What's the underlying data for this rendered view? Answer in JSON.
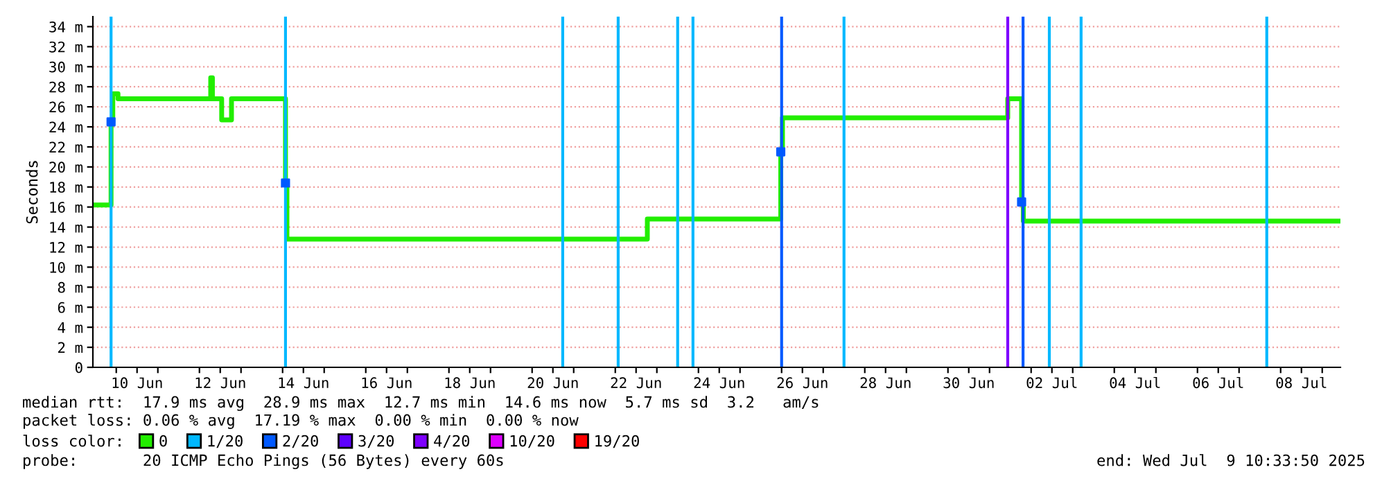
{
  "chart_data": {
    "type": "step",
    "ylabel": "Seconds",
    "x": [
      "2025-06-09T10:30",
      "2025-06-09T21:00",
      "2025-06-09T22:00",
      "2025-06-10T01:00",
      "2025-06-12T06:30",
      "2025-06-12T07:30",
      "2025-06-12T12:50",
      "2025-06-12T18:30",
      "2025-06-14T01:40",
      "2025-06-14T02:30",
      "2025-06-22T18:30",
      "2025-06-25T23:30",
      "2025-06-26T00:30",
      "2025-07-01T10:30",
      "2025-07-01T18:30",
      "2025-07-01T19:30",
      "2025-07-09T10:30"
    ],
    "series": [
      {
        "name": "0",
        "color": "#22ee00",
        "values": [
          16.2,
          24.5,
          27.3,
          26.8,
          28.9,
          26.8,
          24.7,
          26.8,
          18.4,
          12.8,
          14.8,
          21.5,
          24.9,
          26.8,
          16.5,
          14.6,
          14.6
        ]
      },
      {
        "name": "1/20",
        "color": "#00b8ff",
        "values": [
          null,
          null,
          null,
          null,
          null,
          null,
          null,
          null,
          null,
          null,
          null,
          null,
          null,
          null,
          null,
          null,
          null
        ]
      },
      {
        "name": "2/20",
        "type": "scatter",
        "color": "#0059ff",
        "values": [
          null,
          24.5,
          null,
          null,
          null,
          null,
          null,
          null,
          18.4,
          null,
          null,
          21.5,
          null,
          null,
          16.5,
          null,
          null
        ]
      },
      {
        "name": "3/20",
        "color": "#5e00ff",
        "values": [
          null,
          null,
          null,
          null,
          null,
          null,
          null,
          null,
          null,
          null,
          null,
          null,
          null,
          null,
          null,
          null,
          null
        ]
      },
      {
        "name": "4/20",
        "color": "#7e00ff",
        "values": [
          null,
          null,
          null,
          null,
          null,
          null,
          null,
          null,
          null,
          null,
          null,
          null,
          null,
          null,
          null,
          null,
          null
        ]
      },
      {
        "name": "10/20",
        "color": "#dd00ff",
        "values": [
          null,
          null,
          null,
          null,
          null,
          null,
          null,
          null,
          null,
          null,
          null,
          null,
          null,
          null,
          null,
          null,
          null
        ]
      },
      {
        "name": "19/20",
        "color": "#ff0000",
        "values": [
          null,
          null,
          null,
          null,
          null,
          null,
          null,
          null,
          null,
          null,
          null,
          null,
          null,
          null,
          null,
          null,
          null
        ]
      }
    ],
    "legend_title": "loss color:",
    "legend": "bottom left",
    "xlim": [
      "2025-06-09T10:30",
      "2025-07-09T10:30"
    ],
    "xticks": [
      {
        "value": "2025-06-10T00:00",
        "label": null
      },
      {
        "value": "2025-06-11T00:00",
        "label": null
      },
      {
        "value": "2025-06-12T00:00",
        "label": null
      },
      {
        "value": "2025-06-13T00:00",
        "label": null
      },
      {
        "value": "2025-06-14T00:00",
        "label": null
      },
      {
        "value": "2025-06-15T00:00",
        "label": null
      },
      {
        "value": "2025-06-16T00:00",
        "label": null
      },
      {
        "value": "2025-06-17T00:00",
        "label": null
      },
      {
        "value": "2025-06-18T00:00",
        "label": null
      },
      {
        "value": "2025-06-19T00:00",
        "label": null
      },
      {
        "value": "2025-06-20T00:00",
        "label": null
      },
      {
        "value": "2025-06-21T00:00",
        "label": null
      },
      {
        "value": "2025-06-22T00:00",
        "label": null
      },
      {
        "value": "2025-06-23T00:00",
        "label": null
      },
      {
        "value": "2025-06-24T00:00",
        "label": null
      },
      {
        "value": "2025-06-25T00:00",
        "label": null
      },
      {
        "value": "2025-06-26T00:00",
        "label": null
      },
      {
        "value": "2025-06-27T00:00",
        "label": null
      },
      {
        "value": "2025-06-28T00:00",
        "label": null
      },
      {
        "value": "2025-06-29T00:00",
        "label": null
      },
      {
        "value": "2025-06-30T00:00",
        "label": null
      },
      {
        "value": "2025-07-01T00:00",
        "label": null
      },
      {
        "value": "2025-07-02T00:00",
        "label": null
      },
      {
        "value": "2025-07-03T00:00",
        "label": null
      },
      {
        "value": "2025-07-04T00:00",
        "label": null
      },
      {
        "value": "2025-07-05T00:00",
        "label": null
      },
      {
        "value": "2025-07-06T00:00",
        "label": null
      },
      {
        "value": "2025-07-07T00:00",
        "label": null
      },
      {
        "value": "2025-07-08T00:00",
        "label": null
      },
      {
        "value": "2025-07-09T00:00",
        "label": null
      },
      {
        "value": "2025-06-10T12:00",
        "label": "10 Jun"
      },
      {
        "value": "2025-06-12T12:00",
        "label": "12 Jun"
      },
      {
        "value": "2025-06-14T12:00",
        "label": "14 Jun"
      },
      {
        "value": "2025-06-16T12:00",
        "label": "16 Jun"
      },
      {
        "value": "2025-06-18T12:00",
        "label": "18 Jun"
      },
      {
        "value": "2025-06-20T12:00",
        "label": "20 Jun"
      },
      {
        "value": "2025-06-22T12:00",
        "label": "22 Jun"
      },
      {
        "value": "2025-06-24T12:00",
        "label": "24 Jun"
      },
      {
        "value": "2025-06-26T12:00",
        "label": "26 Jun"
      },
      {
        "value": "2025-06-28T12:00",
        "label": "28 Jun"
      },
      {
        "value": "2025-06-30T12:00",
        "label": "30 Jun"
      },
      {
        "value": "2025-07-02T12:00",
        "label": "02 Jul"
      },
      {
        "value": "2025-07-04T12:00",
        "label": "04 Jul"
      },
      {
        "value": "2025-07-06T12:00",
        "label": "06 Jul"
      },
      {
        "value": "2025-07-08T12:00",
        "label": "08 Jul"
      }
    ],
    "ylim": [
      0,
      35
    ],
    "yticks": [
      {
        "value": 0,
        "label": "0"
      },
      {
        "value": 2,
        "label": "2 m"
      },
      {
        "value": 4,
        "label": "4 m"
      },
      {
        "value": 6,
        "label": "6 m"
      },
      {
        "value": 8,
        "label": "8 m"
      },
      {
        "value": 10,
        "label": "10 m"
      },
      {
        "value": 12,
        "label": "12 m"
      },
      {
        "value": 14,
        "label": "14 m"
      },
      {
        "value": 16,
        "label": "16 m"
      },
      {
        "value": 18,
        "label": "18 m"
      },
      {
        "value": 20,
        "label": "20 m"
      },
      {
        "value": 22,
        "label": "22 m"
      },
      {
        "value": 24,
        "label": "24 m"
      },
      {
        "value": 26,
        "label": "26 m"
      },
      {
        "value": 28,
        "label": "28 m"
      },
      {
        "value": 30,
        "label": "30 m"
      },
      {
        "value": 32,
        "label": "32 m"
      },
      {
        "value": 34,
        "label": "34 m"
      }
    ],
    "grid": "y",
    "ref_lines": [
      {
        "axis": "x",
        "value": "2025-06-09T21:00",
        "color": "#00b8ff"
      },
      {
        "axis": "x",
        "value": "2025-06-14T01:40",
        "color": "#00b8ff"
      },
      {
        "axis": "x",
        "value": "2025-06-20T17:40",
        "color": "#00b8ff"
      },
      {
        "axis": "x",
        "value": "2025-06-22T01:40",
        "color": "#00b8ff"
      },
      {
        "axis": "x",
        "value": "2025-06-23T12:00",
        "color": "#00b8ff"
      },
      {
        "axis": "x",
        "value": "2025-06-23T20:50",
        "color": "#00b8ff"
      },
      {
        "axis": "x",
        "value": "2025-06-26T00:00",
        "color": "#0059ff"
      },
      {
        "axis": "x",
        "value": "2025-06-27T12:00",
        "color": "#00b8ff"
      },
      {
        "axis": "x",
        "value": "2025-07-01T10:30",
        "color": "#7e00ff"
      },
      {
        "axis": "x",
        "value": "2025-07-01T19:20",
        "color": "#0059ff"
      },
      {
        "axis": "x",
        "value": "2025-07-02T10:30",
        "color": "#00b8ff"
      },
      {
        "axis": "x",
        "value": "2025-07-03T04:50",
        "color": "#00b8ff"
      },
      {
        "axis": "x",
        "value": "2025-07-07T16:00",
        "color": "#00b8ff"
      }
    ],
    "annotations": [
      "median rtt:  17.9 ms avg  28.9 ms max  12.7 ms min  14.6 ms now  5.7 ms sd  3.2   am/s",
      "packet loss: 0.06 % avg  17.19 % max  0.00 % min  0.00 % now",
      "probe:       20 ICMP Echo Pings (56 Bytes) every 60s",
      "end: Wed Jul  9 10:33:50 2025"
    ]
  }
}
